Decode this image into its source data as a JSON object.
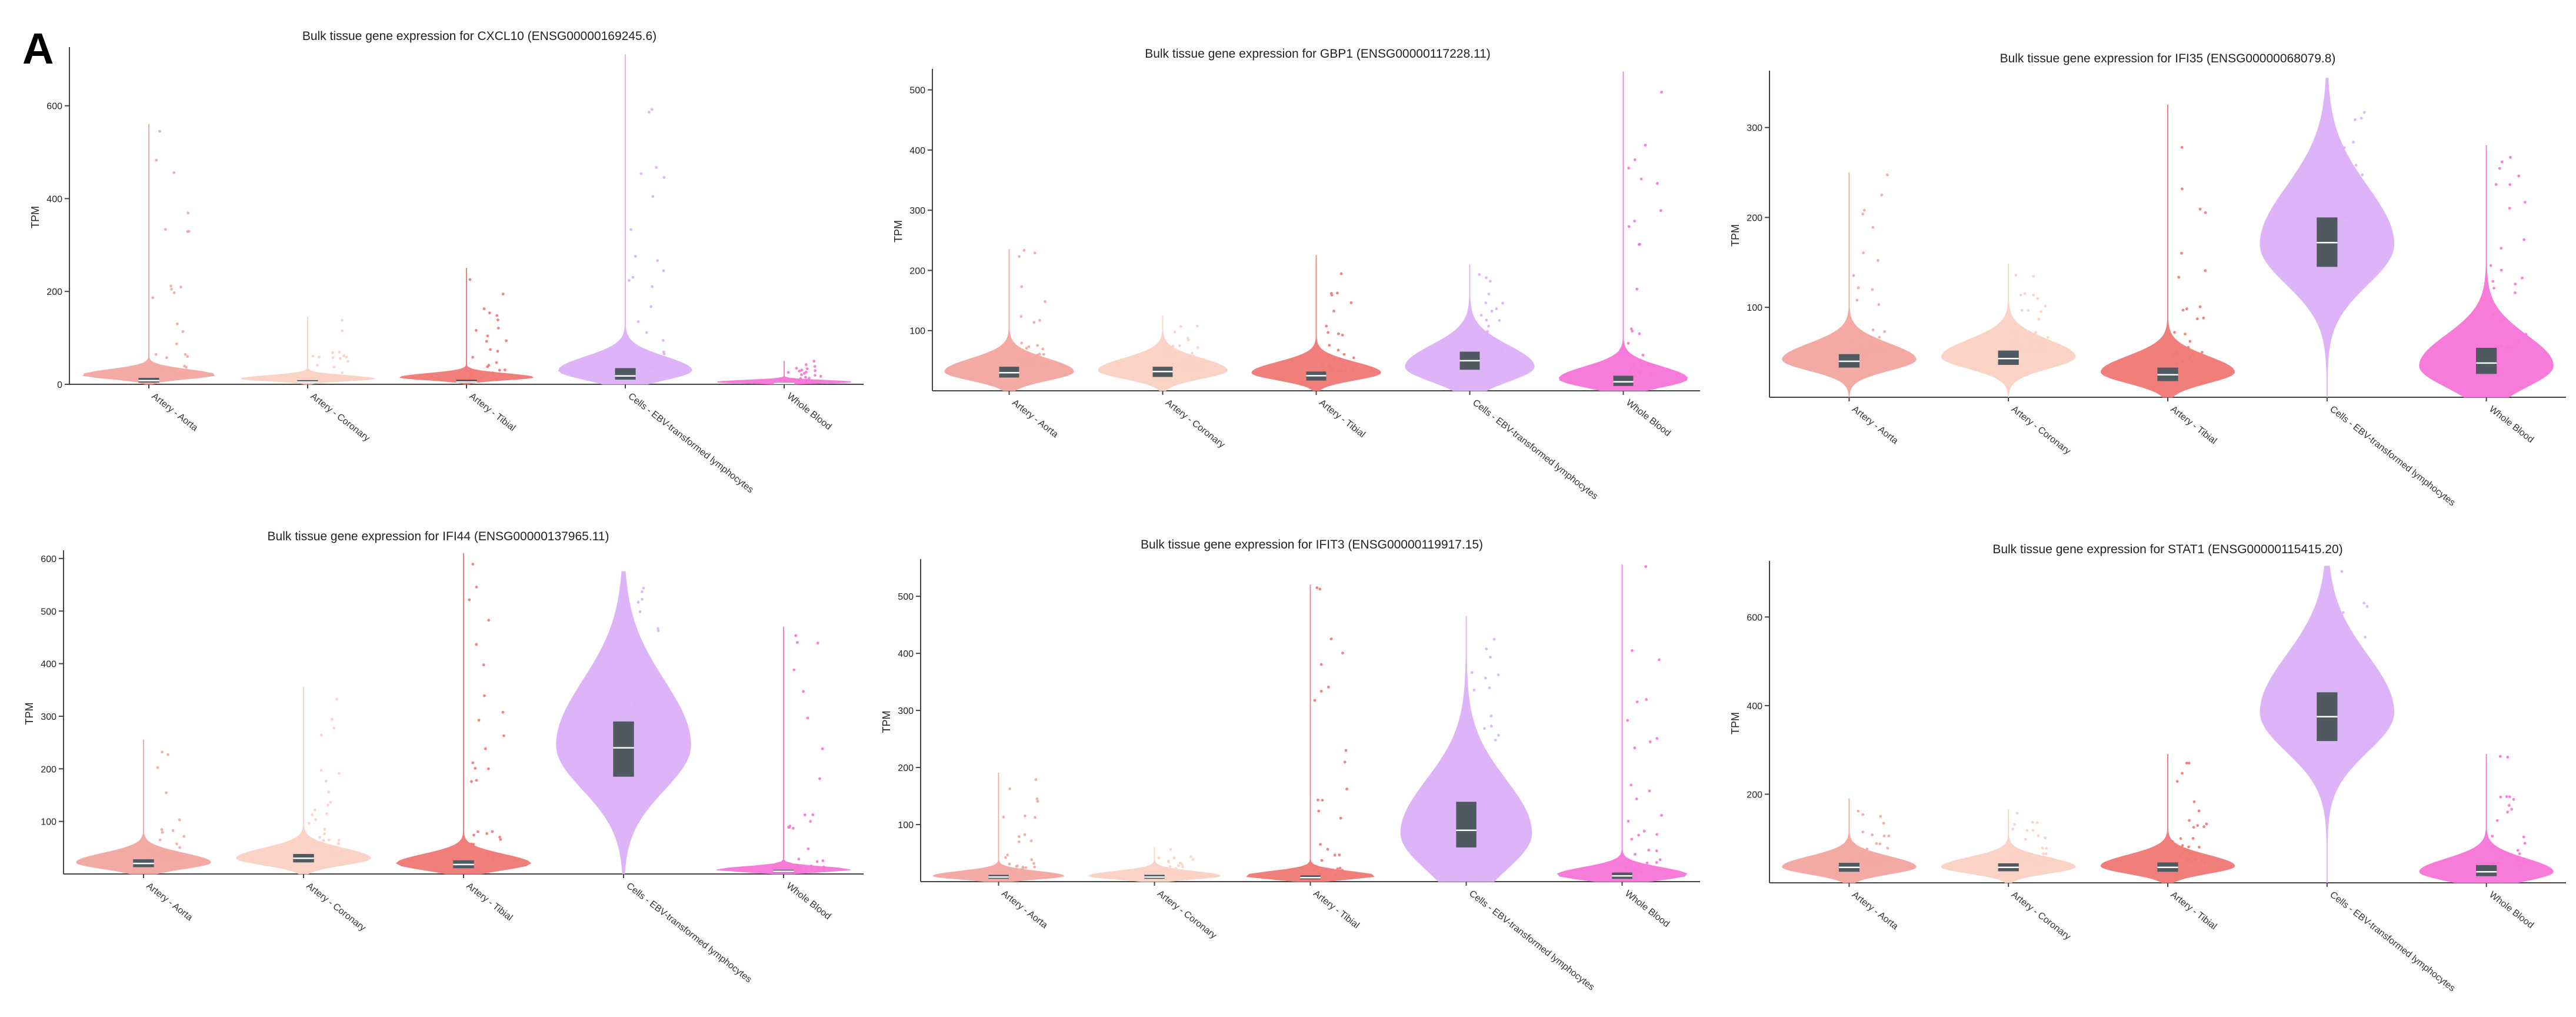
{
  "figure": {
    "panel_letter": "A",
    "colors": {
      "box_fill": "#4f5961",
      "median_line": "#ffffff",
      "axis": "#444444"
    }
  },
  "chart_data": [
    {
      "type": "violin",
      "title": "Bulk tissue gene expression for CXCL10 (ENSG00000169245.6)",
      "ylabel": "TPM",
      "xlabel": "",
      "ylim": [
        0,
        720
      ],
      "yticks": [
        0,
        200,
        400,
        600
      ],
      "categories": [
        "Artery - Aorta",
        "Artery - Coronary",
        "Artery - Tibial",
        "Cells - EBV-transformed lymphocytes",
        "Whole Blood"
      ],
      "colors": [
        "#f4a6a0",
        "#fbd0c4",
        "#f07874",
        "#dcb0f8",
        "#f774d6"
      ],
      "series": [
        {
          "name": "Artery - Aorta",
          "median": 8,
          "q1": 4,
          "q3": 14,
          "max": 560,
          "peak_density": 20
        },
        {
          "name": "Artery - Coronary",
          "median": 5,
          "q1": 3,
          "q3": 9,
          "max": 145,
          "peak_density": 12
        },
        {
          "name": "Artery - Tibial",
          "median": 5,
          "q1": 3,
          "q3": 10,
          "max": 250,
          "peak_density": 15
        },
        {
          "name": "Cells - EBV-transformed lymphocytes",
          "median": 18,
          "q1": 10,
          "q3": 35,
          "max": 710,
          "peak_density": 30
        },
        {
          "name": "Whole Blood",
          "median": 2,
          "q1": 1,
          "q3": 4,
          "max": 50,
          "peak_density": 5
        }
      ]
    },
    {
      "type": "violin",
      "title": "Bulk tissue gene expression for GBP1 (ENSG00000117228.11)",
      "ylabel": "TPM",
      "xlabel": "",
      "ylim": [
        0,
        530
      ],
      "yticks": [
        100,
        200,
        300,
        400,
        500
      ],
      "categories": [
        "Artery - Aorta",
        "Artery - Coronary",
        "Artery - Tibial",
        "Cells - EBV-transformed lymphocytes",
        "Whole Blood"
      ],
      "colors": [
        "#f4a6a0",
        "#fbd0c4",
        "#f07874",
        "#dcb0f8",
        "#f774d6"
      ],
      "series": [
        {
          "name": "Artery - Aorta",
          "median": 30,
          "q1": 22,
          "q3": 40,
          "max": 235,
          "peak_density": 32
        },
        {
          "name": "Artery - Coronary",
          "median": 32,
          "q1": 23,
          "q3": 40,
          "max": 125,
          "peak_density": 34
        },
        {
          "name": "Artery - Tibial",
          "median": 25,
          "q1": 17,
          "q3": 32,
          "max": 225,
          "peak_density": 30
        },
        {
          "name": "Cells - EBV-transformed lymphocytes",
          "median": 50,
          "q1": 35,
          "q3": 65,
          "max": 210,
          "peak_density": 40
        },
        {
          "name": "Whole Blood",
          "median": 15,
          "q1": 8,
          "q3": 25,
          "max": 530,
          "peak_density": 20
        }
      ]
    },
    {
      "type": "violin",
      "title": "Bulk tissue gene expression for IFI35 (ENSG00000068079.8)",
      "ylabel": "TPM",
      "xlabel": "",
      "ylim": [
        0,
        360
      ],
      "yticks": [
        100,
        200,
        300
      ],
      "categories": [
        "Artery - Aorta",
        "Artery - Coronary",
        "Artery - Tibial",
        "Cells - EBV-transformed lymphocytes",
        "Whole Blood"
      ],
      "colors": [
        "#f4a6a0",
        "#fbd0c4",
        "#f07874",
        "#dcb0f8",
        "#f774d6"
      ],
      "series": [
        {
          "name": "Artery - Aorta",
          "median": 40,
          "q1": 33,
          "q3": 48,
          "max": 250,
          "peak_density": 42
        },
        {
          "name": "Artery - Coronary",
          "median": 43,
          "q1": 36,
          "q3": 52,
          "max": 148,
          "peak_density": 45
        },
        {
          "name": "Artery - Tibial",
          "median": 25,
          "q1": 18,
          "q3": 33,
          "max": 325,
          "peak_density": 28
        },
        {
          "name": "Cells - EBV-transformed lymphocytes",
          "median": 172,
          "q1": 145,
          "q3": 200,
          "max": 355,
          "peak_density": 170
        },
        {
          "name": "Whole Blood",
          "median": 38,
          "q1": 26,
          "q3": 55,
          "max": 280,
          "peak_density": 35
        }
      ]
    },
    {
      "type": "violin",
      "title": "Bulk tissue gene expression for IFI44 (ENSG00000137965.11)",
      "ylabel": "TPM",
      "xlabel": "",
      "ylim": [
        0,
        610
      ],
      "yticks": [
        100,
        200,
        300,
        400,
        500,
        600
      ],
      "categories": [
        "Artery - Aorta",
        "Artery - Coronary",
        "Artery - Tibial",
        "Cells - EBV-transformed lymphocytes",
        "Whole Blood"
      ],
      "colors": [
        "#f4a6a0",
        "#fbd0c4",
        "#f07874",
        "#dcb0f8",
        "#f774d6"
      ],
      "series": [
        {
          "name": "Artery - Aorta",
          "median": 20,
          "q1": 13,
          "q3": 28,
          "max": 255,
          "peak_density": 22
        },
        {
          "name": "Artery - Coronary",
          "median": 30,
          "q1": 22,
          "q3": 38,
          "max": 355,
          "peak_density": 30
        },
        {
          "name": "Artery - Tibial",
          "median": 18,
          "q1": 11,
          "q3": 26,
          "max": 610,
          "peak_density": 20
        },
        {
          "name": "Cells - EBV-transformed lymphocytes",
          "median": 240,
          "q1": 185,
          "q3": 290,
          "max": 575,
          "peak_density": 245
        },
        {
          "name": "Whole Blood",
          "median": 5,
          "q1": 3,
          "q3": 8,
          "max": 470,
          "peak_density": 8
        }
      ]
    },
    {
      "type": "violin",
      "title": "Bulk tissue gene expression for IFIT3 (ENSG00000119917.15)",
      "ylabel": "TPM",
      "xlabel": "",
      "ylim": [
        0,
        560
      ],
      "yticks": [
        100,
        200,
        300,
        400,
        500
      ],
      "categories": [
        "Artery - Aorta",
        "Artery - Coronary",
        "Artery - Tibial",
        "Cells - EBV-transformed lymphocytes",
        "Whole Blood"
      ],
      "colors": [
        "#f4a6a0",
        "#fbd0c4",
        "#f07874",
        "#dcb0f8",
        "#f774d6"
      ],
      "series": [
        {
          "name": "Artery - Aorta",
          "median": 8,
          "q1": 5,
          "q3": 12,
          "max": 190,
          "peak_density": 10
        },
        {
          "name": "Artery - Coronary",
          "median": 8,
          "q1": 5,
          "q3": 12,
          "max": 60,
          "peak_density": 10
        },
        {
          "name": "Artery - Tibial",
          "median": 7,
          "q1": 4,
          "q3": 11,
          "max": 520,
          "peak_density": 10
        },
        {
          "name": "Cells - EBV-transformed lymphocytes",
          "median": 90,
          "q1": 60,
          "q3": 140,
          "max": 465,
          "peak_density": 85
        },
        {
          "name": "Whole Blood",
          "median": 10,
          "q1": 5,
          "q3": 16,
          "max": 555,
          "peak_density": 12
        }
      ]
    },
    {
      "type": "violin",
      "title": "Bulk tissue gene expression for STAT1 (ENSG00000115415.20)",
      "ylabel": "TPM",
      "xlabel": "",
      "ylim": [
        0,
        720
      ],
      "yticks": [
        200,
        400,
        600
      ],
      "categories": [
        "Artery - Aorta",
        "Artery - Coronary",
        "Artery - Tibial",
        "Cells - EBV-transformed lymphocytes",
        "Whole Blood"
      ],
      "colors": [
        "#f4a6a0",
        "#fbd0c4",
        "#f07874",
        "#dcb0f8",
        "#f774d6"
      ],
      "series": [
        {
          "name": "Artery - Aorta",
          "median": 35,
          "q1": 25,
          "q3": 45,
          "max": 190,
          "peak_density": 36
        },
        {
          "name": "Artery - Coronary",
          "median": 35,
          "q1": 26,
          "q3": 44,
          "max": 165,
          "peak_density": 36
        },
        {
          "name": "Artery - Tibial",
          "median": 35,
          "q1": 25,
          "q3": 46,
          "max": 290,
          "peak_density": 38
        },
        {
          "name": "Cells - EBV-transformed lymphocytes",
          "median": 375,
          "q1": 320,
          "q3": 430,
          "max": 715,
          "peak_density": 385
        },
        {
          "name": "Whole Blood",
          "median": 25,
          "q1": 15,
          "q3": 40,
          "max": 290,
          "peak_density": 25
        }
      ]
    }
  ]
}
